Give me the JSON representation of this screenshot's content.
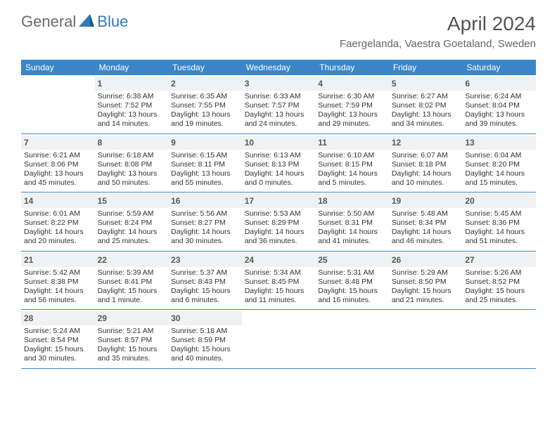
{
  "brand": {
    "part1": "General",
    "part2": "Blue"
  },
  "title": "April 2024",
  "location": "Faergelanda, Vaestra Goetaland, Sweden",
  "colors": {
    "header_bg": "#3a86c8",
    "header_text": "#ffffff",
    "daynum_bg": "#eff1f2",
    "border": "#3a86c8",
    "logo_gray": "#6a6a6a",
    "logo_blue": "#2f7bb8"
  },
  "day_headers": [
    "Sunday",
    "Monday",
    "Tuesday",
    "Wednesday",
    "Thursday",
    "Friday",
    "Saturday"
  ],
  "weeks": [
    [
      null,
      {
        "n": "1",
        "sr": "Sunrise: 6:38 AM",
        "ss": "Sunset: 7:52 PM",
        "d1": "Daylight: 13 hours",
        "d2": "and 14 minutes."
      },
      {
        "n": "2",
        "sr": "Sunrise: 6:35 AM",
        "ss": "Sunset: 7:55 PM",
        "d1": "Daylight: 13 hours",
        "d2": "and 19 minutes."
      },
      {
        "n": "3",
        "sr": "Sunrise: 6:33 AM",
        "ss": "Sunset: 7:57 PM",
        "d1": "Daylight: 13 hours",
        "d2": "and 24 minutes."
      },
      {
        "n": "4",
        "sr": "Sunrise: 6:30 AM",
        "ss": "Sunset: 7:59 PM",
        "d1": "Daylight: 13 hours",
        "d2": "and 29 minutes."
      },
      {
        "n": "5",
        "sr": "Sunrise: 6:27 AM",
        "ss": "Sunset: 8:02 PM",
        "d1": "Daylight: 13 hours",
        "d2": "and 34 minutes."
      },
      {
        "n": "6",
        "sr": "Sunrise: 6:24 AM",
        "ss": "Sunset: 8:04 PM",
        "d1": "Daylight: 13 hours",
        "d2": "and 39 minutes."
      }
    ],
    [
      {
        "n": "7",
        "sr": "Sunrise: 6:21 AM",
        "ss": "Sunset: 8:06 PM",
        "d1": "Daylight: 13 hours",
        "d2": "and 45 minutes."
      },
      {
        "n": "8",
        "sr": "Sunrise: 6:18 AM",
        "ss": "Sunset: 8:08 PM",
        "d1": "Daylight: 13 hours",
        "d2": "and 50 minutes."
      },
      {
        "n": "9",
        "sr": "Sunrise: 6:15 AM",
        "ss": "Sunset: 8:11 PM",
        "d1": "Daylight: 13 hours",
        "d2": "and 55 minutes."
      },
      {
        "n": "10",
        "sr": "Sunrise: 6:13 AM",
        "ss": "Sunset: 8:13 PM",
        "d1": "Daylight: 14 hours",
        "d2": "and 0 minutes."
      },
      {
        "n": "11",
        "sr": "Sunrise: 6:10 AM",
        "ss": "Sunset: 8:15 PM",
        "d1": "Daylight: 14 hours",
        "d2": "and 5 minutes."
      },
      {
        "n": "12",
        "sr": "Sunrise: 6:07 AM",
        "ss": "Sunset: 8:18 PM",
        "d1": "Daylight: 14 hours",
        "d2": "and 10 minutes."
      },
      {
        "n": "13",
        "sr": "Sunrise: 6:04 AM",
        "ss": "Sunset: 8:20 PM",
        "d1": "Daylight: 14 hours",
        "d2": "and 15 minutes."
      }
    ],
    [
      {
        "n": "14",
        "sr": "Sunrise: 6:01 AM",
        "ss": "Sunset: 8:22 PM",
        "d1": "Daylight: 14 hours",
        "d2": "and 20 minutes."
      },
      {
        "n": "15",
        "sr": "Sunrise: 5:59 AM",
        "ss": "Sunset: 8:24 PM",
        "d1": "Daylight: 14 hours",
        "d2": "and 25 minutes."
      },
      {
        "n": "16",
        "sr": "Sunrise: 5:56 AM",
        "ss": "Sunset: 8:27 PM",
        "d1": "Daylight: 14 hours",
        "d2": "and 30 minutes."
      },
      {
        "n": "17",
        "sr": "Sunrise: 5:53 AM",
        "ss": "Sunset: 8:29 PM",
        "d1": "Daylight: 14 hours",
        "d2": "and 36 minutes."
      },
      {
        "n": "18",
        "sr": "Sunrise: 5:50 AM",
        "ss": "Sunset: 8:31 PM",
        "d1": "Daylight: 14 hours",
        "d2": "and 41 minutes."
      },
      {
        "n": "19",
        "sr": "Sunrise: 5:48 AM",
        "ss": "Sunset: 8:34 PM",
        "d1": "Daylight: 14 hours",
        "d2": "and 46 minutes."
      },
      {
        "n": "20",
        "sr": "Sunrise: 5:45 AM",
        "ss": "Sunset: 8:36 PM",
        "d1": "Daylight: 14 hours",
        "d2": "and 51 minutes."
      }
    ],
    [
      {
        "n": "21",
        "sr": "Sunrise: 5:42 AM",
        "ss": "Sunset: 8:38 PM",
        "d1": "Daylight: 14 hours",
        "d2": "and 56 minutes."
      },
      {
        "n": "22",
        "sr": "Sunrise: 5:39 AM",
        "ss": "Sunset: 8:41 PM",
        "d1": "Daylight: 15 hours",
        "d2": "and 1 minute."
      },
      {
        "n": "23",
        "sr": "Sunrise: 5:37 AM",
        "ss": "Sunset: 8:43 PM",
        "d1": "Daylight: 15 hours",
        "d2": "and 6 minutes."
      },
      {
        "n": "24",
        "sr": "Sunrise: 5:34 AM",
        "ss": "Sunset: 8:45 PM",
        "d1": "Daylight: 15 hours",
        "d2": "and 11 minutes."
      },
      {
        "n": "25",
        "sr": "Sunrise: 5:31 AM",
        "ss": "Sunset: 8:48 PM",
        "d1": "Daylight: 15 hours",
        "d2": "and 16 minutes."
      },
      {
        "n": "26",
        "sr": "Sunrise: 5:29 AM",
        "ss": "Sunset: 8:50 PM",
        "d1": "Daylight: 15 hours",
        "d2": "and 21 minutes."
      },
      {
        "n": "27",
        "sr": "Sunrise: 5:26 AM",
        "ss": "Sunset: 8:52 PM",
        "d1": "Daylight: 15 hours",
        "d2": "and 25 minutes."
      }
    ],
    [
      {
        "n": "28",
        "sr": "Sunrise: 5:24 AM",
        "ss": "Sunset: 8:54 PM",
        "d1": "Daylight: 15 hours",
        "d2": "and 30 minutes."
      },
      {
        "n": "29",
        "sr": "Sunrise: 5:21 AM",
        "ss": "Sunset: 8:57 PM",
        "d1": "Daylight: 15 hours",
        "d2": "and 35 minutes."
      },
      {
        "n": "30",
        "sr": "Sunrise: 5:18 AM",
        "ss": "Sunset: 8:59 PM",
        "d1": "Daylight: 15 hours",
        "d2": "and 40 minutes."
      },
      null,
      null,
      null,
      null
    ]
  ]
}
